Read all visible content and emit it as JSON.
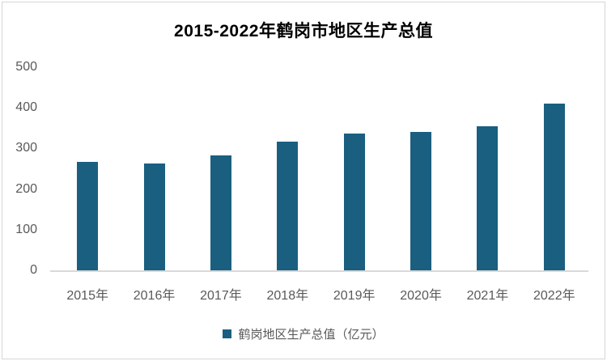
{
  "page": {
    "background": "#FFFFFF",
    "border_color": "#D6D6D6"
  },
  "chart_data": {
    "type": "bar",
    "title": "2015-2022年鹤岗市地区生产总值",
    "categories": [
      "2015年",
      "2016年",
      "2017年",
      "2018年",
      "2019年",
      "2020年",
      "2021年",
      "2022年"
    ],
    "series": [
      {
        "name": "鹤岗地区生产总值（亿元）",
        "values": [
          266,
          263,
          283,
          317,
          337,
          341,
          355,
          410
        ]
      }
    ],
    "legend": {
      "label": "鹤岗地区生产总值（亿元）",
      "marker": "square-icon",
      "position": "bottom"
    },
    "xlabel": "",
    "ylabel": "",
    "ylim": [
      0,
      500
    ],
    "yticks": [
      0,
      100,
      200,
      300,
      400,
      500
    ],
    "grid": false,
    "colors": {
      "bar": "#1A5F80",
      "axis_line": "#D9D9D9",
      "tick_text": "#595959",
      "title_text": "#000000"
    }
  }
}
